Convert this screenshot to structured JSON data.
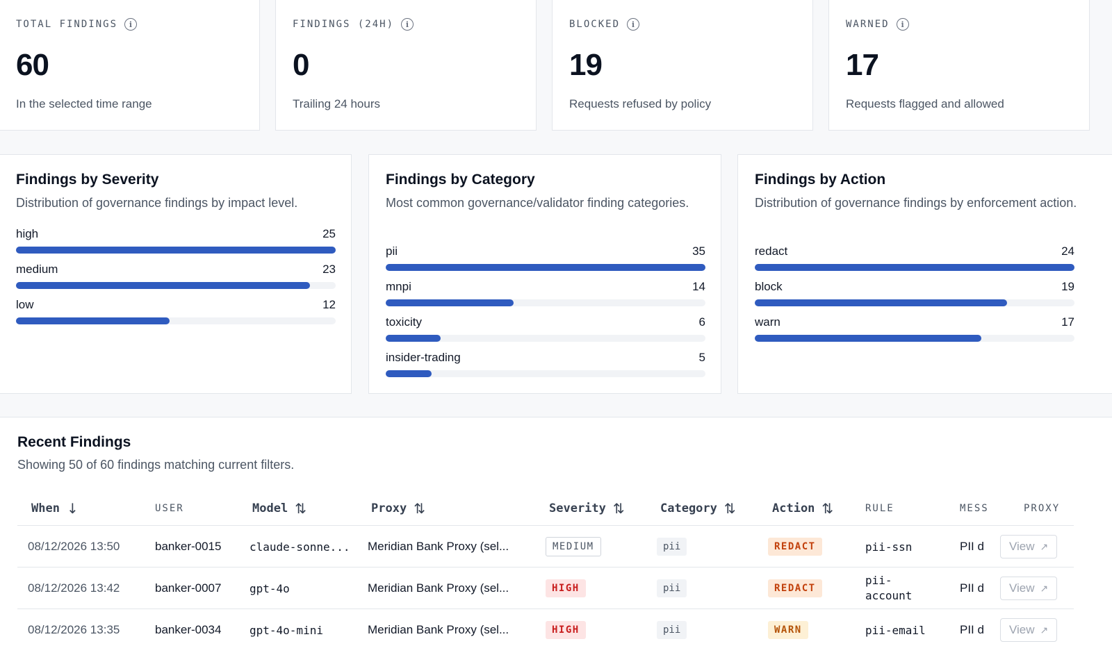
{
  "stats": [
    {
      "label": "TOTAL FINDINGS",
      "value": "60",
      "sub": "In the selected time range"
    },
    {
      "label": "FINDINGS (24H)",
      "value": "0",
      "sub": "Trailing 24 hours"
    },
    {
      "label": "BLOCKED",
      "value": "19",
      "sub": "Requests refused by policy"
    },
    {
      "label": "WARNED",
      "value": "17",
      "sub": "Requests flagged and allowed"
    }
  ],
  "charts": [
    {
      "title": "Findings by Severity",
      "desc": "Distribution of governance findings by impact level.",
      "items": [
        {
          "label": "high",
          "count": "25",
          "fraction": 1.0
        },
        {
          "label": "medium",
          "count": "23",
          "fraction": 0.92
        },
        {
          "label": "low",
          "count": "12",
          "fraction": 0.48
        }
      ]
    },
    {
      "title": "Findings by Category",
      "desc": "Most common governance/validator finding categories.",
      "items": [
        {
          "label": "pii",
          "count": "35",
          "fraction": 1.0
        },
        {
          "label": "mnpi",
          "count": "14",
          "fraction": 0.4
        },
        {
          "label": "toxicity",
          "count": "6",
          "fraction": 0.171
        },
        {
          "label": "insider-trading",
          "count": "5",
          "fraction": 0.143
        }
      ]
    },
    {
      "title": "Findings by Action",
      "desc": "Distribution of governance findings by enforcement action.",
      "items": [
        {
          "label": "redact",
          "count": "24",
          "fraction": 1.0
        },
        {
          "label": "block",
          "count": "19",
          "fraction": 0.79
        },
        {
          "label": "warn",
          "count": "17",
          "fraction": 0.708
        }
      ]
    }
  ],
  "table": {
    "title": "Recent Findings",
    "desc": "Showing 50 of 60 findings matching current filters.",
    "columns": {
      "when": "When",
      "user": "USER",
      "model": "Model",
      "proxy": "Proxy",
      "severity": "Severity",
      "category": "Category",
      "action": "Action",
      "rule": "RULE",
      "message": "MESS",
      "proxy_link": "PROXY"
    },
    "icons": {
      "sort_desc": "arrow-down-icon",
      "sort": "sort-icon",
      "external": "external-link-icon"
    },
    "view_label": "View",
    "rows": [
      {
        "when": "08/12/2026 13:50",
        "user": "banker-0015",
        "model": "claude-sonne...",
        "proxy": "Meridian Bank Proxy (sel...",
        "severity": "MEDIUM",
        "category": "pii",
        "action": "REDACT",
        "rule": "pii-ssn",
        "message": "PII d"
      },
      {
        "when": "08/12/2026 13:42",
        "user": "banker-0007",
        "model": "gpt-4o",
        "proxy": "Meridian Bank Proxy (sel...",
        "severity": "HIGH",
        "category": "pii",
        "action": "REDACT",
        "rule": "pii-account",
        "message": "PII d"
      },
      {
        "when": "08/12/2026 13:35",
        "user": "banker-0034",
        "model": "gpt-4o-mini",
        "proxy": "Meridian Bank Proxy (sel...",
        "severity": "HIGH",
        "category": "pii",
        "action": "WARN",
        "rule": "pii-email",
        "message": "PII d"
      }
    ]
  }
}
